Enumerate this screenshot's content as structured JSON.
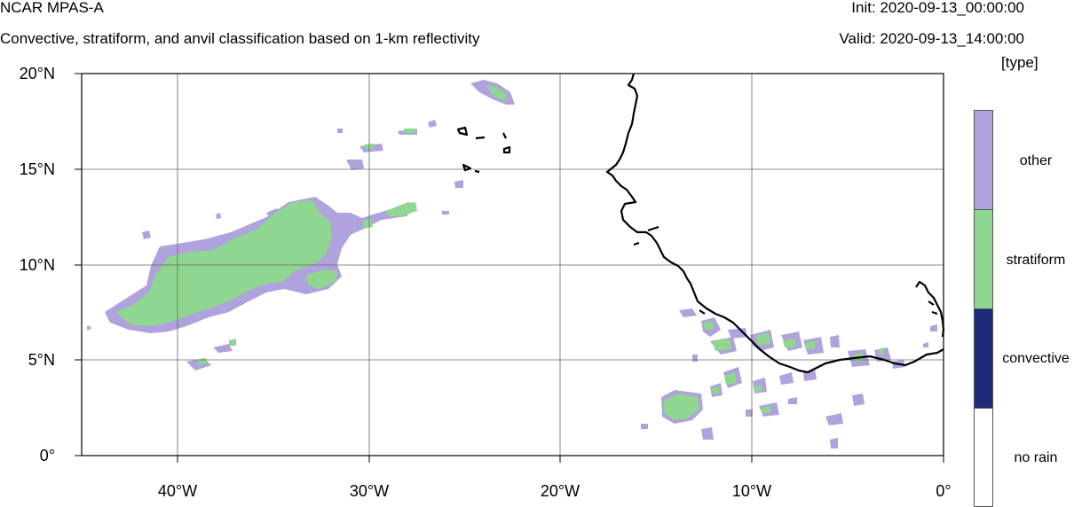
{
  "header": {
    "title": "NCAR MPAS-A",
    "subtitle": "Convective, stratiform, and anvil classification based on 1-km reflectivity",
    "init": "Init: 2020-09-13_00:00:00",
    "valid": "Valid: 2020-09-13_14:00:00"
  },
  "legend": {
    "units": "[type]",
    "items": [
      {
        "label": "other",
        "color": "#b0a2dc"
      },
      {
        "label": "stratiform",
        "color": "#8fd690"
      },
      {
        "label": "convective",
        "color": "#1c2a78"
      },
      {
        "label": "no rain",
        "color": "#ffffff"
      }
    ]
  },
  "map": {
    "lon_range": [
      -45,
      0
    ],
    "lat_range": [
      0,
      20
    ],
    "lat_ticks": [
      "20°N",
      "15°N",
      "10°N",
      "5°N",
      "0°"
    ],
    "lon_ticks": [
      "40°W",
      "30°W",
      "20°W",
      "10°W",
      "0°"
    ],
    "lat_tick_values": [
      20,
      15,
      10,
      5,
      0
    ],
    "lon_tick_values": [
      -40,
      -30,
      -20,
      -10,
      0
    ]
  }
}
